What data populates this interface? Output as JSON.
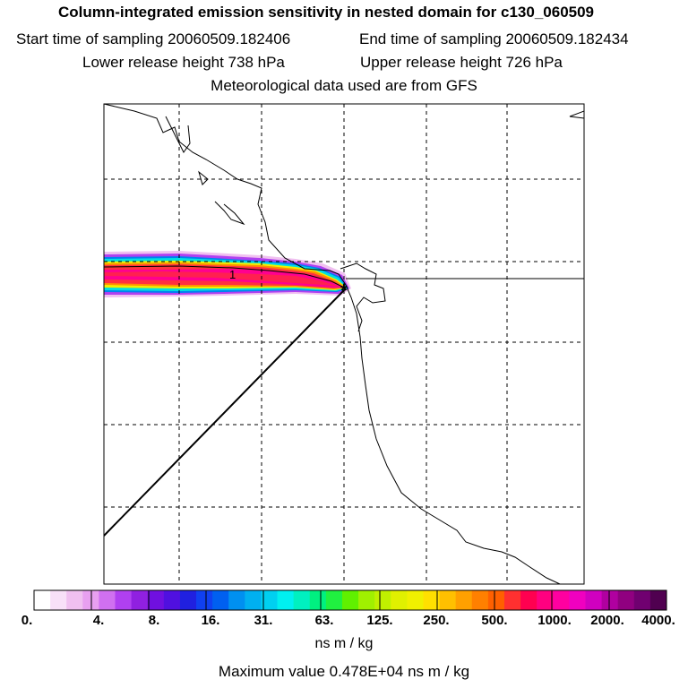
{
  "title": "Column-integrated emission sensitivity in nested domain for c130_060509",
  "sampling": {
    "start": "Start time of sampling 20060509.182406",
    "end": "End time of sampling 20060509.182434"
  },
  "release": {
    "lower": "Lower release height  738 hPa",
    "upper": "Upper release height  726 hPa"
  },
  "met_note": "Meteorological data used are from GFS",
  "map": {
    "source_marker": "*",
    "contour_label": "1"
  },
  "colorbar": {
    "tick_labels": [
      "0.",
      "4.",
      "8.",
      "16.",
      "31.",
      "63.",
      "125.",
      "250.",
      "500.",
      "1000.",
      "2000.",
      "4000."
    ],
    "colors": [
      "#ffffff",
      "#f8e0f8",
      "#f0c0f0",
      "#e8a0f0",
      "#d070f0",
      "#b040f0",
      "#9020e0",
      "#7010e0",
      "#5010e0",
      "#2020e0",
      "#1040f0",
      "#0060f0",
      "#0090f0",
      "#00b0f0",
      "#00d0f0",
      "#00f0f0",
      "#00f0c0",
      "#00f080",
      "#20f040",
      "#60f000",
      "#a0f000",
      "#c0f000",
      "#e0f000",
      "#f0f000",
      "#ffe000",
      "#ffc000",
      "#ffa000",
      "#ff8000",
      "#ff6000",
      "#ff3030",
      "#ff0050",
      "#ff0080",
      "#ff00a0",
      "#f000c0",
      "#d000c0",
      "#b000a0",
      "#900080",
      "#700070",
      "#500050"
    ]
  },
  "unit": "ns m / kg",
  "maximum": "Maximum value  0.478E+04 ns m / kg"
}
